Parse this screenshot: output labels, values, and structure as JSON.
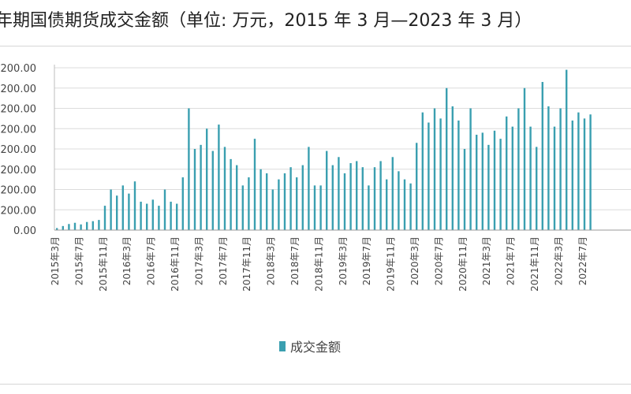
{
  "title": "年期国债期货成交金额（单位: 万元，2015 年 3 月—2023 年 3 月）",
  "chart_data": {
    "type": "bar",
    "title": "年期国债期货成交金额（单位: 万元，2015 年 3 月—2023 年 3 月）",
    "ytick_labels": [
      "0.00",
      "200.00",
      "200.00",
      "200.00",
      "200.00",
      "200.00",
      "200.00",
      "200.00",
      "200.00"
    ],
    "xtick_labels": [
      "2015年3月",
      "2015年7月",
      "2015年11月",
      "2016年3月",
      "2016年7月",
      "2016年11月",
      "2017年3月",
      "2017年7月",
      "2017年11月",
      "2018年3月",
      "2018年7月",
      "2018年11月",
      "2019年3月",
      "2019年7月",
      "2019年11月",
      "2020年3月",
      "2020年7月",
      "2020年11月",
      "2021年3月",
      "2021年7月",
      "2021年11月",
      "2022年3月",
      "2022年7月"
    ],
    "categories": [
      "2015-03",
      "2015-04",
      "2015-05",
      "2015-06",
      "2015-07",
      "2015-08",
      "2015-09",
      "2015-10",
      "2015-11",
      "2015-12",
      "2016-01",
      "2016-02",
      "2016-03",
      "2016-04",
      "2016-05",
      "2016-06",
      "2016-07",
      "2016-08",
      "2016-09",
      "2016-10",
      "2016-11",
      "2016-12",
      "2017-01",
      "2017-02",
      "2017-03",
      "2017-04",
      "2017-05",
      "2017-06",
      "2017-07",
      "2017-08",
      "2017-09",
      "2017-10",
      "2017-11",
      "2017-12",
      "2018-01",
      "2018-02",
      "2018-03",
      "2018-04",
      "2018-05",
      "2018-06",
      "2018-07",
      "2018-08",
      "2018-09",
      "2018-10",
      "2018-11",
      "2018-12",
      "2019-01",
      "2019-02",
      "2019-03",
      "2019-04",
      "2019-05",
      "2019-06",
      "2019-07",
      "2019-08",
      "2019-09",
      "2019-10",
      "2019-11",
      "2019-12",
      "2020-01",
      "2020-02",
      "2020-03",
      "2020-04",
      "2020-05",
      "2020-06",
      "2020-07",
      "2020-08",
      "2020-09",
      "2020-10",
      "2020-11",
      "2020-12",
      "2021-01",
      "2021-02",
      "2021-03",
      "2021-04",
      "2021-05",
      "2021-06",
      "2021-07",
      "2021-08",
      "2021-09",
      "2021-10",
      "2021-11",
      "2021-12",
      "2022-01",
      "2022-02",
      "2022-03",
      "2022-04",
      "2022-05",
      "2022-06",
      "2022-07",
      "2022-08"
    ],
    "series": [
      {
        "name": "成交金额",
        "color": "#3a9fb0",
        "values": [
          5,
          10,
          15,
          18,
          14,
          20,
          22,
          25,
          60,
          100,
          85,
          110,
          90,
          120,
          70,
          65,
          75,
          60,
          100,
          70,
          65,
          130,
          300,
          200,
          210,
          250,
          195,
          260,
          205,
          175,
          160,
          110,
          130,
          225,
          150,
          140,
          100,
          125,
          140,
          155,
          130,
          160,
          205,
          110,
          110,
          195,
          160,
          180,
          140,
          165,
          170,
          155,
          110,
          155,
          170,
          125,
          180,
          145,
          125,
          115,
          215,
          290,
          265,
          300,
          275,
          350,
          305,
          270,
          200,
          300,
          235,
          240,
          210,
          245,
          225,
          280,
          255,
          300,
          350,
          255,
          205,
          365,
          305,
          255,
          300,
          395,
          270,
          290,
          275,
          285
        ]
      }
    ],
    "grid": true,
    "legend_position": "bottom"
  },
  "legend": {
    "label": "成交金额",
    "color": "#3a9fb0"
  }
}
